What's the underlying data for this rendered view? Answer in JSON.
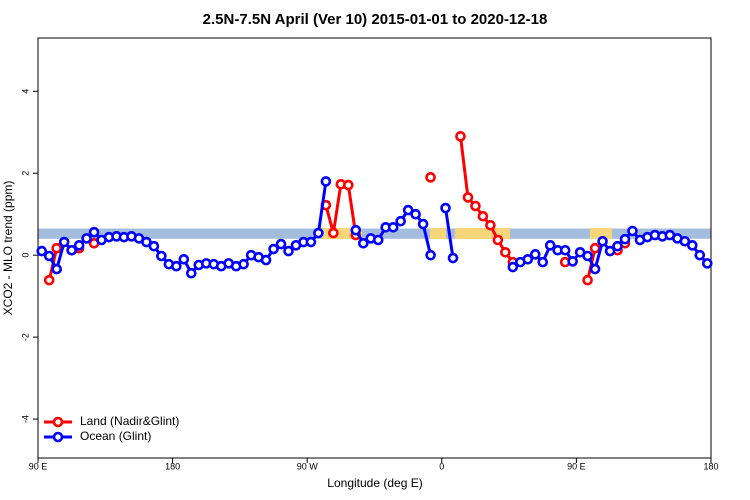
{
  "chart_data": {
    "type": "line",
    "title": "2.5N-7.5N April (Ver 10)   2015-01-01 to 2020-12-18",
    "x_label": "Longitude (deg E)",
    "y_label": "XCO2 - MLO trend (ppm)",
    "xlim": [
      90,
      540
    ],
    "ylim": [
      -4.95,
      5.3
    ],
    "xticks": [
      {
        "value": 90,
        "label": "90 E"
      },
      180,
      {
        "value": 270,
        "label": "90 W"
      },
      {
        "value": 360,
        "label": "0"
      },
      {
        "value": 450,
        "label": "90 E"
      },
      {
        "value": 540,
        "label": "180"
      }
    ],
    "yticks": [
      -4,
      -2,
      0,
      2,
      4
    ],
    "reference_band": [
      0.4,
      0.65
    ],
    "legend": "bottomleft",
    "series": [
      {
        "name": "Land (Nadir&Glint)",
        "color": "#ff0000",
        "x": [
          97.5,
          102.5,
          107.5,
          112.5,
          117.5,
          122.5,
          127.5,
          132.5,
          282.5,
          287.5,
          292.5,
          297.5,
          302.5,
          307.5,
          352.5,
          357.5,
          372.5,
          377.5,
          382.5,
          387.5,
          392.5,
          397.5,
          402.5,
          407.5,
          412.5,
          442.5,
          447.5,
          457.5,
          462.5,
          467.5,
          477.5,
          482.5
        ],
        "values": [
          -0.61,
          0.17,
          null,
          0.12,
          0.17,
          null,
          0.29,
          null,
          1.22,
          0.54,
          1.73,
          1.71,
          0.49,
          null,
          1.9,
          null,
          2.9,
          1.41,
          1.2,
          0.95,
          0.73,
          0.37,
          0.07,
          -0.17,
          null,
          -0.17,
          null,
          -0.61,
          0.17,
          null,
          0.12,
          0.29
        ]
      },
      {
        "name": "Ocean (Glint)",
        "color": "#0000ff",
        "x": [
          92.5,
          97.5,
          102.5,
          107.5,
          112.5,
          117.5,
          122.5,
          127.5,
          132.5,
          137.5,
          142.5,
          147.5,
          152.5,
          157.5,
          162.5,
          167.5,
          172.5,
          177.5,
          182.5,
          187.5,
          192.5,
          197.5,
          202.5,
          207.5,
          212.5,
          217.5,
          222.5,
          227.5,
          232.5,
          237.5,
          242.5,
          247.5,
          252.5,
          257.5,
          262.5,
          267.5,
          272.5,
          277.5,
          282.5,
          287.5,
          302.5,
          307.5,
          312.5,
          317.5,
          322.5,
          327.5,
          332.5,
          337.5,
          342.5,
          347.5,
          352.5,
          357.5,
          362.5,
          367.5,
          372.5,
          407.5,
          412.5,
          417.5,
          422.5,
          427.5,
          432.5,
          437.5,
          442.5,
          447.5,
          452.5,
          457.5,
          462.5,
          467.5,
          472.5,
          477.5,
          482.5,
          487.5,
          492.5,
          497.5,
          502.5,
          507.5,
          512.5,
          517.5,
          522.5,
          527.5,
          532.5,
          537.5
        ],
        "values": [
          0.1,
          -0.02,
          -0.34,
          0.32,
          0.12,
          0.24,
          0.41,
          0.56,
          0.37,
          0.44,
          0.46,
          0.44,
          0.46,
          0.41,
          0.32,
          0.22,
          -0.02,
          -0.22,
          -0.27,
          -0.1,
          -0.44,
          -0.24,
          -0.2,
          -0.22,
          -0.27,
          -0.2,
          -0.27,
          -0.22,
          0,
          -0.05,
          -0.12,
          0.15,
          0.27,
          0.1,
          0.24,
          0.32,
          0.32,
          0.54,
          1.8,
          null,
          0.61,
          0.29,
          0.41,
          0.37,
          0.68,
          0.68,
          0.83,
          1.1,
          1.0,
          0.76,
          0,
          null,
          1.15,
          -0.07,
          null,
          -0.29,
          -0.17,
          -0.1,
          0.02,
          -0.17,
          0.24,
          0.12,
          0.12,
          -0.15,
          0.07,
          -0.02,
          -0.34,
          0.34,
          0.1,
          0.22,
          0.39,
          0.59,
          0.37,
          0.44,
          0.49,
          0.46,
          0.49,
          0.41,
          0.34,
          0.24,
          0,
          -0.2
        ]
      }
    ]
  }
}
